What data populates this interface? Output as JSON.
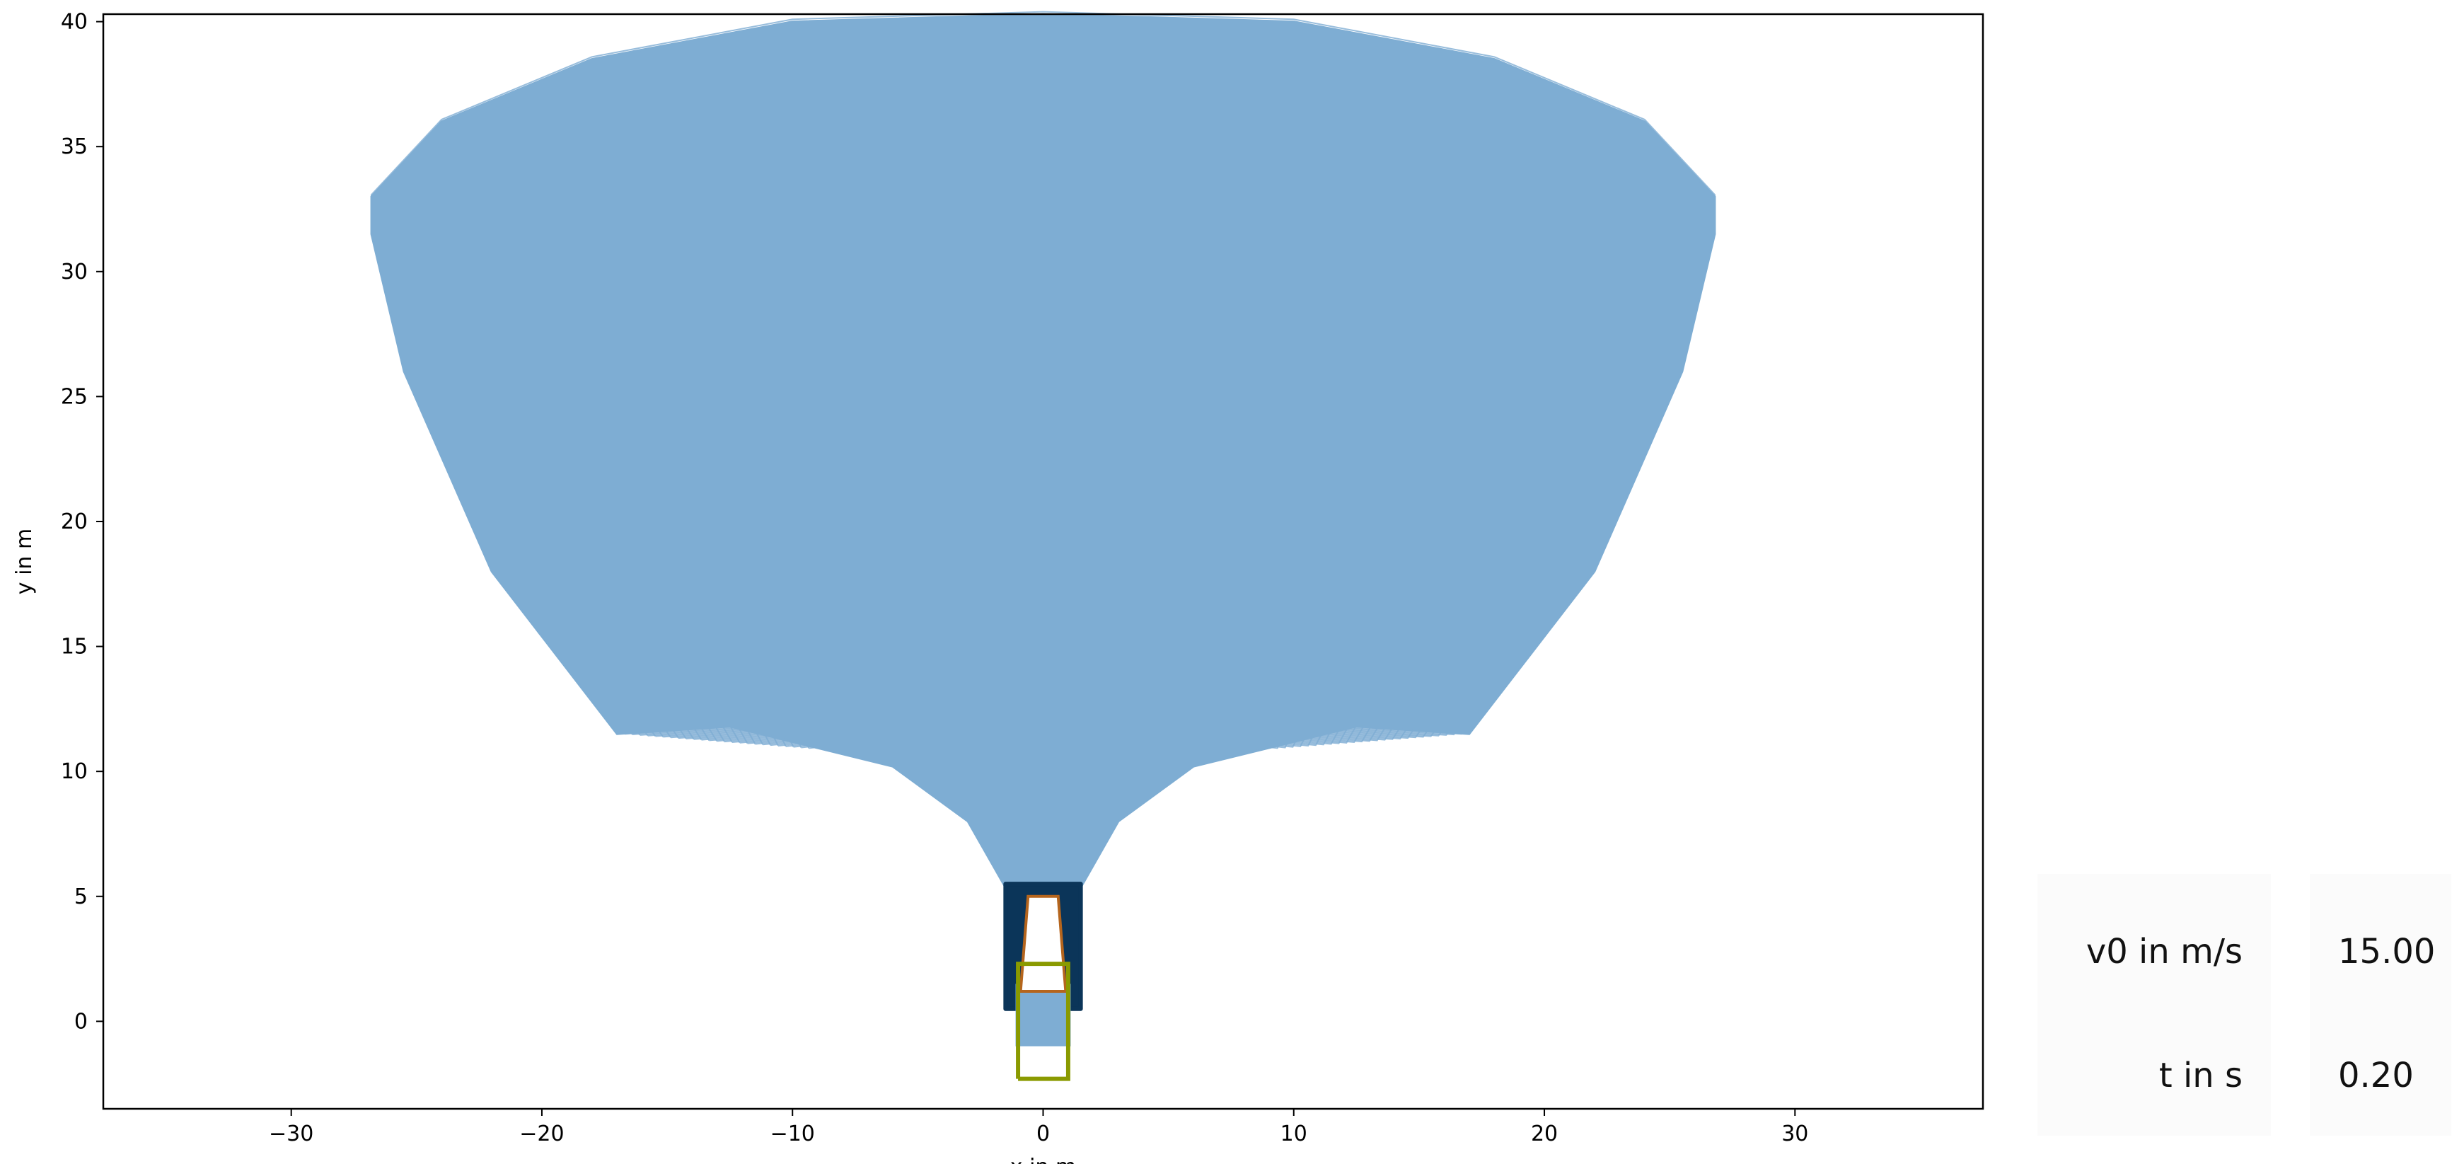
{
  "chart_data": {
    "type": "line",
    "title": "",
    "xlabel": "x in m",
    "ylabel": "y in m",
    "xlim": [
      -37.5,
      37.5
    ],
    "ylim": [
      -3.5,
      40.3
    ],
    "x_ticks": [
      -30,
      -20,
      -10,
      0,
      10,
      20,
      30
    ],
    "y_ticks": [
      0,
      5,
      10,
      15,
      20,
      25,
      30,
      35,
      40
    ],
    "grid": false,
    "colors": {
      "reachable_set": "#7eadd3",
      "occupancy_dark": "#0b3559",
      "vehicle_outline": "#b5651d",
      "initial_box": "#8a9a00"
    },
    "series": [
      {
        "name": "",
        "x": [
          -17.0,
          -22.0,
          -25.5,
          -26.8,
          -26.8,
          -24.0,
          -18.0,
          -10.0,
          0.0,
          10.0,
          18.0,
          24.0,
          26.8,
          26.8,
          25.5,
          22.0,
          17.0,
          12.5,
          6.0,
          3.0,
          1.3,
          -1.3,
          -3.0,
          -6.0,
          -12.5,
          -17.0
        ],
        "y": [
          11.5,
          18.0,
          26.0,
          31.5,
          33.0,
          36.0,
          38.5,
          40.0,
          40.3,
          40.0,
          38.5,
          36.0,
          33.0,
          31.5,
          26.0,
          18.0,
          11.5,
          11.8,
          10.2,
          8.0,
          5.0,
          5.0,
          8.0,
          10.2,
          11.8,
          11.5
        ]
      },
      {
        "name": "",
        "x": [
          -1.5,
          1.5,
          1.5,
          -1.5,
          -1.5
        ],
        "y": [
          0.5,
          0.5,
          5.5,
          5.5,
          0.5
        ]
      },
      {
        "name": "",
        "x": [
          -0.6,
          0.6,
          0.9,
          -0.9,
          -0.6
        ],
        "y": [
          5.0,
          5.0,
          1.2,
          1.2,
          5.0
        ]
      },
      {
        "name": "",
        "x": [
          -1.0,
          1.0,
          1.0,
          -1.0,
          -1.0
        ],
        "y": [
          -2.3,
          -2.3,
          2.3,
          2.3,
          -2.3
        ]
      }
    ]
  },
  "panel": {
    "v0_label": "v0 in m/s",
    "v0_value": "15.00",
    "t_label": "t in s",
    "t_value": "0.20"
  }
}
